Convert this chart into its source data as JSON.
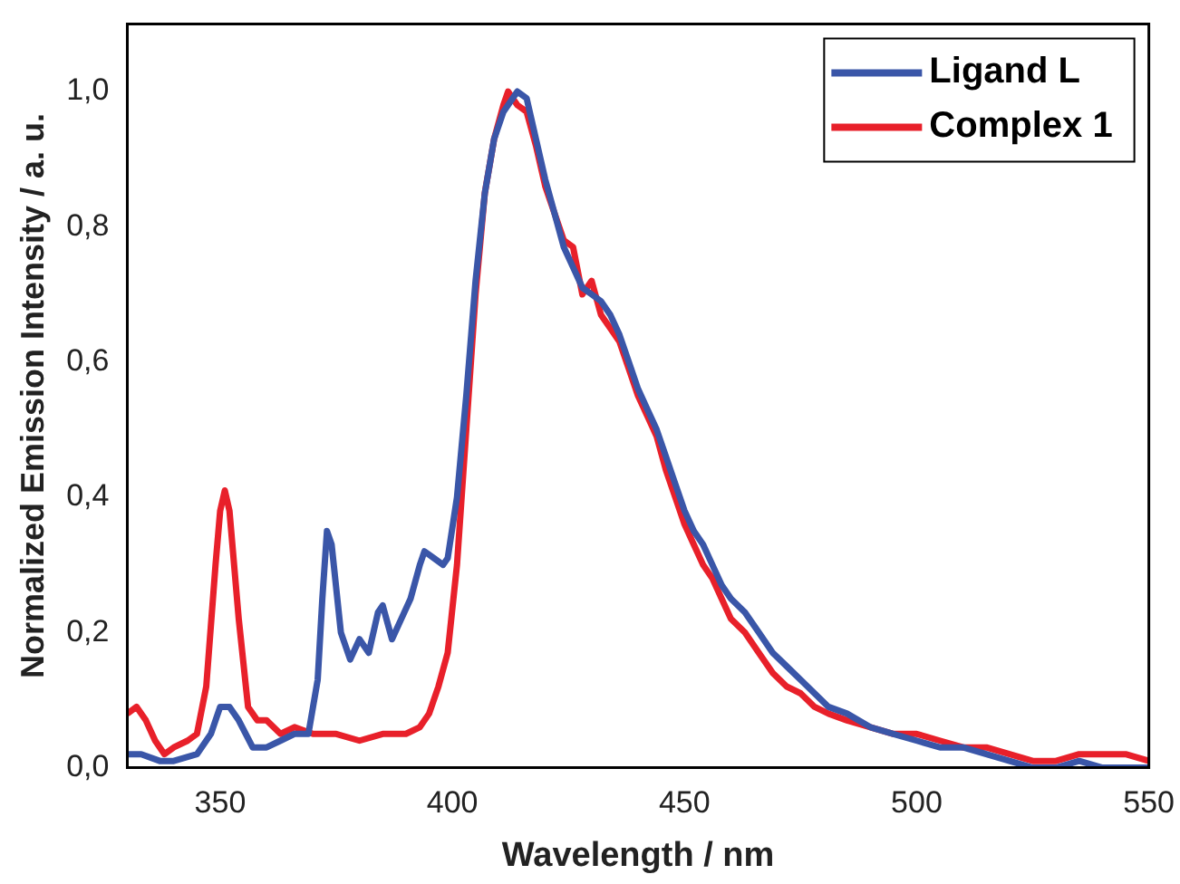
{
  "chart_data": {
    "type": "line",
    "xlabel": "Wavelength / nm",
    "ylabel": "Normalized Emission Intensity / a. u.",
    "xlim": [
      330,
      550
    ],
    "xticks": [
      350,
      400,
      450,
      500,
      550
    ],
    "ylim": [
      0,
      1.1
    ],
    "yticks": [
      {
        "value": 0,
        "label": "0,0"
      },
      {
        "value": 0.2,
        "label": "0,2"
      },
      {
        "value": 0.4,
        "label": "0,4"
      },
      {
        "value": 0.6,
        "label": "0,6"
      },
      {
        "value": 0.8,
        "label": "0,8"
      },
      {
        "value": 1.0,
        "label": "1,0"
      }
    ],
    "grid": false,
    "legend": "top right",
    "marker": "none",
    "line_style": "solid",
    "series": [
      {
        "name": "Ligand L",
        "color": "#3a56a8",
        "x": [
          330,
          333,
          337,
          340,
          345,
          348,
          350,
          352,
          354,
          357,
          360,
          363,
          366,
          369,
          371,
          372,
          373,
          374,
          376,
          378,
          380,
          382,
          384,
          385,
          387,
          389,
          391,
          393,
          394,
          396,
          398,
          399,
          401,
          403,
          405,
          407,
          409,
          411,
          413,
          414,
          416,
          418,
          420,
          422,
          424,
          426,
          428,
          430,
          432,
          434,
          436,
          438,
          440,
          442,
          444,
          446,
          448,
          450,
          452,
          454,
          456,
          458,
          460,
          463,
          466,
          469,
          472,
          475,
          478,
          481,
          485,
          490,
          495,
          500,
          505,
          510,
          515,
          520,
          525,
          530,
          535,
          540,
          545,
          550
        ],
        "values": [
          0.02,
          0.02,
          0.01,
          0.01,
          0.02,
          0.05,
          0.09,
          0.09,
          0.07,
          0.03,
          0.03,
          0.04,
          0.05,
          0.05,
          0.13,
          0.25,
          0.35,
          0.33,
          0.2,
          0.16,
          0.19,
          0.17,
          0.23,
          0.24,
          0.19,
          0.22,
          0.25,
          0.3,
          0.32,
          0.31,
          0.3,
          0.31,
          0.4,
          0.55,
          0.72,
          0.85,
          0.93,
          0.97,
          0.99,
          1.0,
          0.99,
          0.93,
          0.87,
          0.82,
          0.77,
          0.74,
          0.71,
          0.7,
          0.69,
          0.67,
          0.64,
          0.6,
          0.56,
          0.53,
          0.5,
          0.46,
          0.42,
          0.38,
          0.35,
          0.33,
          0.3,
          0.27,
          0.25,
          0.23,
          0.2,
          0.17,
          0.15,
          0.13,
          0.11,
          0.09,
          0.08,
          0.06,
          0.05,
          0.04,
          0.03,
          0.03,
          0.02,
          0.01,
          0.0,
          0.0,
          0.01,
          0.0,
          0.0,
          0.0
        ]
      },
      {
        "name": "Complex 1",
        "color": "#e8202a",
        "x": [
          330,
          332,
          334,
          336,
          338,
          340,
          343,
          345,
          347,
          349,
          350,
          351,
          352,
          354,
          356,
          358,
          360,
          363,
          366,
          370,
          375,
          380,
          385,
          390,
          393,
          395,
          397,
          399,
          401,
          403,
          405,
          407,
          409,
          411,
          412,
          414,
          416,
          418,
          420,
          422,
          424,
          426,
          428,
          430,
          432,
          434,
          436,
          438,
          440,
          442,
          444,
          446,
          448,
          450,
          452,
          454,
          456,
          458,
          460,
          463,
          466,
          469,
          472,
          475,
          478,
          481,
          485,
          490,
          495,
          500,
          505,
          510,
          515,
          520,
          525,
          530,
          535,
          540,
          545,
          550
        ],
        "values": [
          0.08,
          0.09,
          0.07,
          0.04,
          0.02,
          0.03,
          0.04,
          0.05,
          0.12,
          0.3,
          0.38,
          0.41,
          0.38,
          0.22,
          0.09,
          0.07,
          0.07,
          0.05,
          0.06,
          0.05,
          0.05,
          0.04,
          0.05,
          0.05,
          0.06,
          0.08,
          0.12,
          0.17,
          0.3,
          0.5,
          0.7,
          0.85,
          0.93,
          0.98,
          1.0,
          0.98,
          0.97,
          0.92,
          0.86,
          0.82,
          0.78,
          0.77,
          0.7,
          0.72,
          0.67,
          0.65,
          0.63,
          0.59,
          0.55,
          0.52,
          0.49,
          0.44,
          0.4,
          0.36,
          0.33,
          0.3,
          0.28,
          0.25,
          0.22,
          0.2,
          0.17,
          0.14,
          0.12,
          0.11,
          0.09,
          0.08,
          0.07,
          0.06,
          0.05,
          0.05,
          0.04,
          0.03,
          0.03,
          0.02,
          0.01,
          0.01,
          0.02,
          0.02,
          0.02,
          0.01
        ]
      }
    ]
  }
}
